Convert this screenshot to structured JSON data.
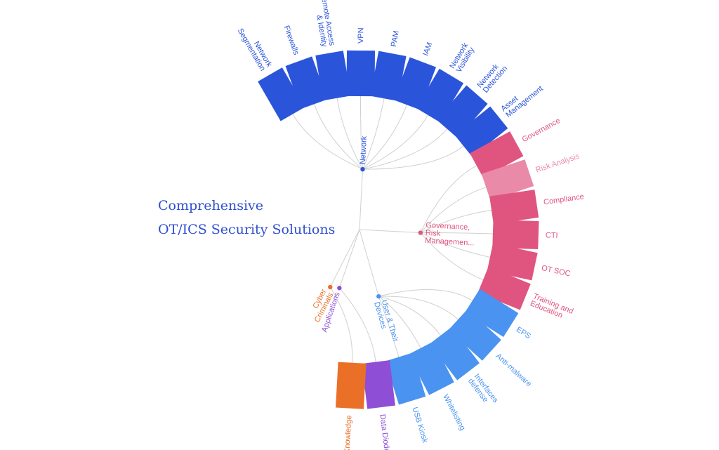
{
  "title": {
    "line1": "Comprehensive",
    "line2": "OT/ICS Security Solutions"
  },
  "colors": {
    "network": "#2a55db",
    "governance": "#e0557f",
    "governance_light": "#ea8aa9",
    "users": "#4a93f0",
    "applications": "#8e4fd6",
    "cyber": "#ea7028",
    "link": "#d0d0d0"
  },
  "groups": [
    {
      "id": "network",
      "label": [
        "Network"
      ],
      "color": "network",
      "leaves": [
        {
          "label": [
            "Network",
            "Segmentation"
          ]
        },
        {
          "label": [
            "Firewalls"
          ]
        },
        {
          "label": [
            "Remote Access",
            "& Identity"
          ]
        },
        {
          "label": [
            "VPN"
          ]
        },
        {
          "label": [
            "PAM"
          ]
        },
        {
          "label": [
            "IAM"
          ]
        },
        {
          "label": [
            "Network",
            "Visibility"
          ]
        },
        {
          "label": [
            "Network",
            "Detection"
          ]
        },
        {
          "label": [
            "Asset",
            "Management"
          ]
        }
      ]
    },
    {
      "id": "governance",
      "label": [
        "Governance,",
        "Risk",
        "Managemen..."
      ],
      "color": "governance",
      "leaves": [
        {
          "label": [
            "Governance"
          ]
        },
        {
          "label": [
            "Risk Analysis"
          ],
          "color": "governance_light"
        },
        {
          "label": [
            "Compliance"
          ]
        },
        {
          "label": [
            "CTI"
          ]
        },
        {
          "label": [
            "OT SOC"
          ]
        },
        {
          "label": [
            "Training and",
            "Education"
          ]
        }
      ]
    },
    {
      "id": "users",
      "label": [
        "User & Their",
        "Devices"
      ],
      "color": "users",
      "leaves": [
        {
          "label": [
            "EPS"
          ]
        },
        {
          "label": [
            "Anti-malware"
          ]
        },
        {
          "label": [
            "Interfaces",
            "defense"
          ]
        },
        {
          "label": [
            "Whitelisting"
          ]
        },
        {
          "label": [
            "USB Kiosk"
          ]
        }
      ]
    },
    {
      "id": "applications",
      "label": [
        "Applications"
      ],
      "color": "applications",
      "leaves": [
        {
          "label": [
            "Data Diodes"
          ]
        }
      ]
    },
    {
      "id": "cyber",
      "label": [
        "Cyber",
        "Criminals"
      ],
      "color": "cyber",
      "leaves": [
        {
          "label": [
            "Knowledge"
          ]
        }
      ]
    }
  ]
}
